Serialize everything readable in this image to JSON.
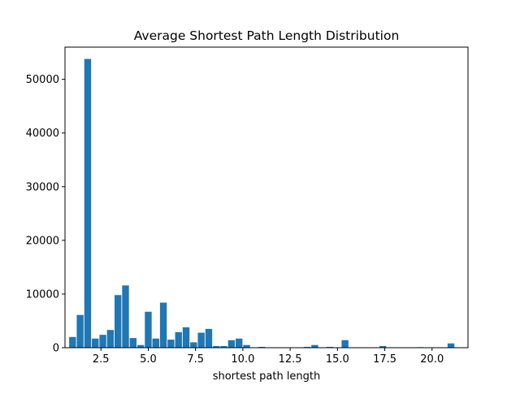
{
  "chart_data": {
    "type": "bar",
    "title": "Average Shortest Path Length Distribution",
    "xlabel": "shortest path length",
    "ylabel": "",
    "xlim": [
      0.6,
      21.9
    ],
    "ylim": [
      0,
      56000
    ],
    "xticks": [
      2.5,
      5.0,
      7.5,
      10.0,
      12.5,
      15.0,
      17.5,
      20.0
    ],
    "xtick_labels": [
      "2.5",
      "5.0",
      "7.5",
      "10.0",
      "12.5",
      "15.0",
      "17.5",
      "20.0"
    ],
    "yticks": [
      0,
      10000,
      20000,
      30000,
      40000,
      50000
    ],
    "ytick_labels": [
      "0",
      "10000",
      "20000",
      "30000",
      "40000",
      "50000"
    ],
    "bar_color": "#1f77b4",
    "bar_width": 0.36,
    "grid": false,
    "legend": "none",
    "x": [
      1.0,
      1.4,
      1.8,
      2.2,
      2.6,
      3.0,
      3.4,
      3.8,
      4.2,
      4.6,
      5.0,
      5.4,
      5.8,
      6.2,
      6.6,
      7.0,
      7.4,
      7.8,
      8.2,
      8.6,
      9.0,
      9.4,
      9.8,
      10.2,
      11.0,
      13.4,
      13.8,
      14.6,
      15.4,
      17.4,
      19.4,
      21.0
    ],
    "values": [
      2000,
      6100,
      53800,
      1700,
      2400,
      3300,
      9800,
      11600,
      1800,
      500,
      6700,
      1700,
      8400,
      1500,
      2900,
      3800,
      1000,
      2800,
      3500,
      300,
      300,
      1400,
      1700,
      500,
      150,
      150,
      500,
      150,
      1400,
      300,
      100,
      800
    ]
  }
}
